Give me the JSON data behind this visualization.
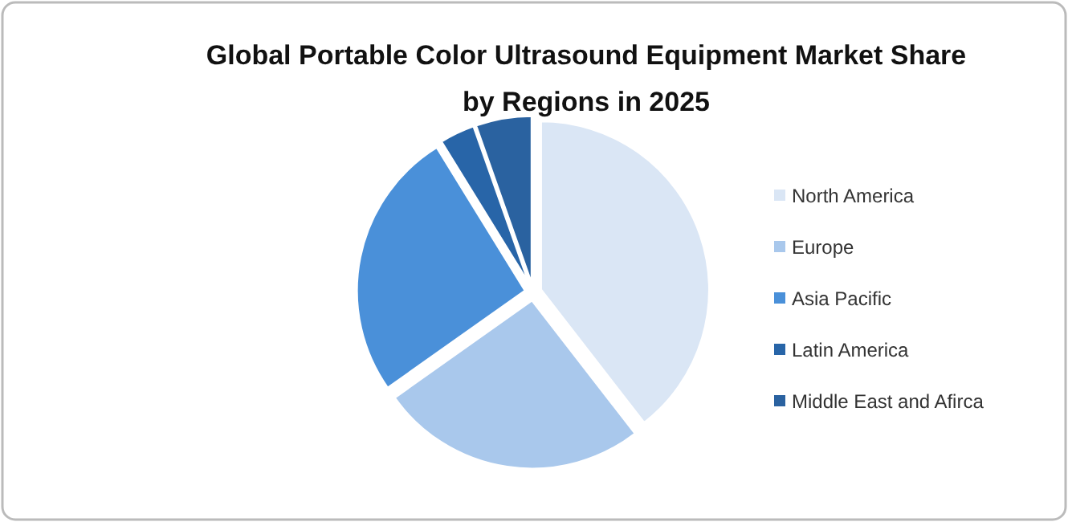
{
  "chart_data": {
    "type": "pie",
    "title": "Global Portable Color Ultrasound Equipment Market Share by Regions in 2025",
    "categories": [
      "North America",
      "Europe",
      "Asia Pacific",
      "Latin America",
      "Middle East and Afirca"
    ],
    "values": [
      39.5,
      25.7,
      26,
      3.4,
      5.4
    ],
    "colors": [
      "#dae6f5",
      "#a9c8ec",
      "#4a90d9",
      "#2865a8",
      "#2a62a0"
    ],
    "legend": "right"
  }
}
